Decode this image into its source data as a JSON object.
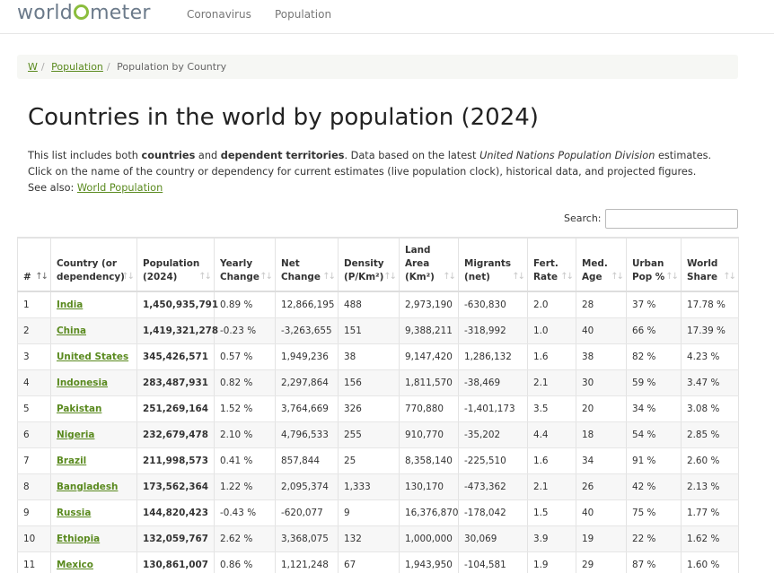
{
  "header": {
    "logo_left": "world",
    "logo_right": "meter",
    "nav": [
      "Coronavirus",
      "Population"
    ]
  },
  "breadcrumb": {
    "items": [
      "W",
      "Population",
      "Population by Country"
    ]
  },
  "page": {
    "title": "Countries in the world by population (2024)",
    "intro_line1_a": "This list includes both ",
    "intro_line1_b": "countries",
    "intro_line1_c": " and ",
    "intro_line1_d": "dependent territories",
    "intro_line1_e": ". Data based on the latest ",
    "intro_line1_f": "United Nations Population Division",
    "intro_line1_g": " estimates.",
    "intro_line2": "Click on the name of the country or dependency for current estimates (live population clock), historical data, and projected figures.",
    "see_also_label": "See also: ",
    "see_also_link": "World Population"
  },
  "search": {
    "label": "Search:",
    "value": ""
  },
  "table": {
    "headers": [
      [
        "#"
      ],
      [
        "Country (or",
        "dependency)"
      ],
      [
        "Population",
        "(2024)"
      ],
      [
        "Yearly",
        "Change"
      ],
      [
        "Net",
        "Change"
      ],
      [
        "Density",
        "(P/Km²)"
      ],
      [
        "Land",
        "Area",
        "(Km²)"
      ],
      [
        "Migrants",
        "(net)"
      ],
      [
        "Fert.",
        "Rate"
      ],
      [
        "Med.",
        "Age"
      ],
      [
        "Urban",
        "Pop %"
      ],
      [
        "World",
        "Share"
      ]
    ],
    "rows": [
      [
        "1",
        "India",
        "1,450,935,791",
        "0.89 %",
        "12,866,195",
        "488",
        "2,973,190",
        "-630,830",
        "2.0",
        "28",
        "37 %",
        "17.78 %"
      ],
      [
        "2",
        "China",
        "1,419,321,278",
        "-0.23 %",
        "-3,263,655",
        "151",
        "9,388,211",
        "-318,992",
        "1.0",
        "40",
        "66 %",
        "17.39 %"
      ],
      [
        "3",
        "United States",
        "345,426,571",
        "0.57 %",
        "1,949,236",
        "38",
        "9,147,420",
        "1,286,132",
        "1.6",
        "38",
        "82 %",
        "4.23 %"
      ],
      [
        "4",
        "Indonesia",
        "283,487,931",
        "0.82 %",
        "2,297,864",
        "156",
        "1,811,570",
        "-38,469",
        "2.1",
        "30",
        "59 %",
        "3.47 %"
      ],
      [
        "5",
        "Pakistan",
        "251,269,164",
        "1.52 %",
        "3,764,669",
        "326",
        "770,880",
        "-1,401,173",
        "3.5",
        "20",
        "34 %",
        "3.08 %"
      ],
      [
        "6",
        "Nigeria",
        "232,679,478",
        "2.10 %",
        "4,796,533",
        "255",
        "910,770",
        "-35,202",
        "4.4",
        "18",
        "54 %",
        "2.85 %"
      ],
      [
        "7",
        "Brazil",
        "211,998,573",
        "0.41 %",
        "857,844",
        "25",
        "8,358,140",
        "-225,510",
        "1.6",
        "34",
        "91 %",
        "2.60 %"
      ],
      [
        "8",
        "Bangladesh",
        "173,562,364",
        "1.22 %",
        "2,095,374",
        "1,333",
        "130,170",
        "-473,362",
        "2.1",
        "26",
        "42 %",
        "2.13 %"
      ],
      [
        "9",
        "Russia",
        "144,820,423",
        "-0.43 %",
        "-620,077",
        "9",
        "16,376,870",
        "-178,042",
        "1.5",
        "40",
        "75 %",
        "1.77 %"
      ],
      [
        "10",
        "Ethiopia",
        "132,059,767",
        "2.62 %",
        "3,368,075",
        "132",
        "1,000,000",
        "30,069",
        "3.9",
        "19",
        "22 %",
        "1.62 %"
      ],
      [
        "11",
        "Mexico",
        "130,861,007",
        "0.86 %",
        "1,121,248",
        "67",
        "1,943,950",
        "-104,581",
        "1.9",
        "29",
        "87 %",
        "1.60 %"
      ]
    ]
  }
}
